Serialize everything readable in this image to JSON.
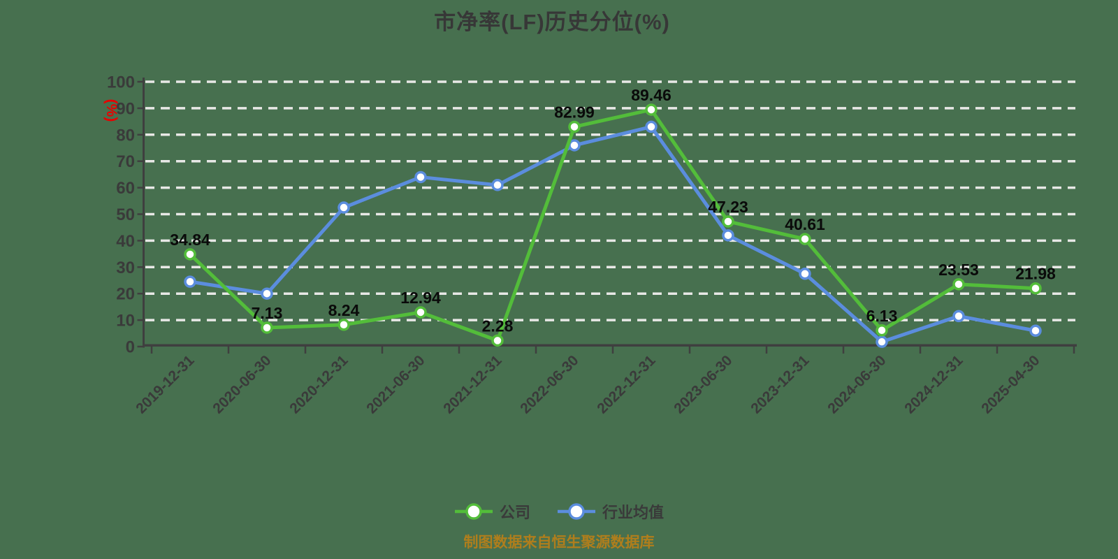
{
  "title": "市净率(LF)历史分位(%)",
  "caption": "制图数据来自恒生聚源数据库",
  "y_axis": {
    "unit_label": "(%)",
    "min": 0,
    "max": 100,
    "tick_step": 10
  },
  "colors": {
    "background": "#47704f",
    "title_text": "#373737",
    "axis": "#3f3f3f",
    "gridline": "#e8e8e6",
    "tick_text": "#3a3a3a",
    "data_label_text": "#0a0a0a",
    "y_unit_text": "#e80000",
    "caption_text": "#b07e1c",
    "marker_fill": "#ffffff"
  },
  "chart_data": {
    "type": "line",
    "title": "市净率(LF)历史分位(%)",
    "xlabel": "",
    "ylabel": "(%)",
    "ylim": [
      0,
      100
    ],
    "ytick_step": 10,
    "grid": "horizontal-dashed-white",
    "legend_position": "bottom",
    "x_label_rotation_deg": 45,
    "categories": [
      "2019-12-31",
      "2020-06-30",
      "2020-12-31",
      "2021-06-30",
      "2021-12-31",
      "2022-06-30",
      "2022-12-31",
      "2023-06-30",
      "2023-12-31",
      "2024-06-30",
      "2024-12-31",
      "2025-04-30"
    ],
    "series": [
      {
        "name": "行业均值",
        "id_key": "industry-average",
        "color": "#5b8dde",
        "marker": "circle-white-fill",
        "show_point_labels": false,
        "values_estimated_from_gridlines": true,
        "values": [
          24.5,
          20,
          52.5,
          64,
          61,
          76,
          83,
          42,
          27.5,
          1.8,
          11.5,
          6
        ]
      },
      {
        "name": "公司",
        "id_key": "company",
        "color": "#53bd3a",
        "marker": "circle-white-fill",
        "show_point_labels": true,
        "values": [
          34.84,
          7.13,
          8.24,
          12.94,
          2.28,
          82.99,
          89.46,
          47.23,
          40.61,
          6.13,
          23.53,
          21.98
        ],
        "point_labels": [
          "34.84",
          "7.13",
          "8.24",
          "12.94",
          "2.28",
          "82.99",
          "89.46",
          "47.23",
          "40.61",
          "6.13",
          "23.53",
          "21.98"
        ]
      }
    ],
    "legend_order": [
      "公司",
      "行业均值"
    ]
  }
}
